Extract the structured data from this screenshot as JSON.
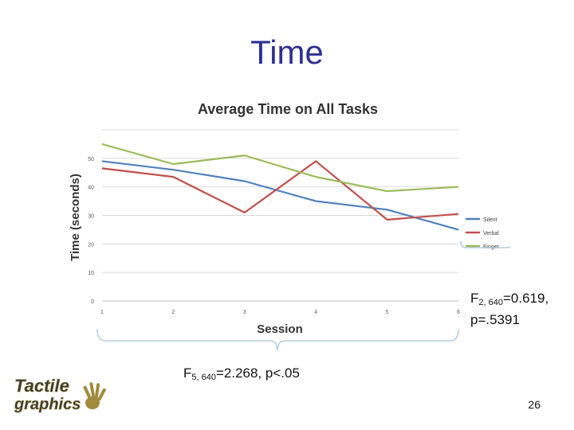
{
  "slide": {
    "title": "Time",
    "page_number": "26"
  },
  "stats": {
    "session": {
      "prefix": "F",
      "sub": "5, 640",
      "rest": "=2.268, p<.05"
    },
    "condition": {
      "prefix": "F",
      "sub": "2, 640",
      "rest": "=0.619,",
      "line2": "p=.5391"
    }
  },
  "logo": {
    "line1": "Tactile",
    "line2": "graphics"
  },
  "colors": {
    "title": "#2e3092",
    "silent": "#4f81bd",
    "verbal": "#c0504d",
    "finger": "#9bbb59",
    "grid": "#d9d9d9",
    "bracket": "#a9c4d8",
    "logo_text": "#3a3a3a",
    "logo_hand": "#a08a3c"
  },
  "chart_data": {
    "type": "line",
    "title": "Average Time on All Tasks",
    "xlabel": "Session",
    "ylabel": "Time (seconds)",
    "categories": [
      "1",
      "2",
      "3",
      "4",
      "5",
      "6"
    ],
    "ylim": [
      0,
      60
    ],
    "yticks": [
      "0",
      "10",
      "20",
      "30",
      "40",
      "50"
    ],
    "grid": true,
    "legend_position": "right",
    "series": [
      {
        "name": "Silent",
        "values": [
          49,
          46,
          42,
          35,
          32,
          25
        ]
      },
      {
        "name": "Verbal",
        "values": [
          46.5,
          43.5,
          31,
          49,
          28.5,
          30.5
        ]
      },
      {
        "name": "Finger",
        "values": [
          55,
          48,
          51,
          43.5,
          38.5,
          40
        ]
      }
    ]
  }
}
